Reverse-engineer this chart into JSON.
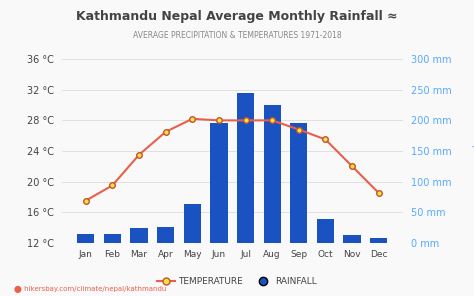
{
  "title": "Kathmandu Nepal Average Monthly Rainfall ≈",
  "subtitle": "AVERAGE PRECIPITATION & TEMPERATURES 1971-2018",
  "months": [
    "Jan",
    "Feb",
    "Mar",
    "Apr",
    "May",
    "Jun",
    "Jul",
    "Aug",
    "Sep",
    "Oct",
    "Nov",
    "Dec"
  ],
  "rainfall_mm": [
    15,
    15,
    24,
    25,
    64,
    195,
    245,
    225,
    195,
    38,
    13,
    8
  ],
  "temperature_c": [
    17.5,
    19.5,
    23.5,
    26.5,
    28.2,
    28.0,
    28.0,
    28.0,
    26.8,
    25.5,
    22.0,
    18.5
  ],
  "bar_color": "#1a52c2",
  "line_color": "#e8604c",
  "marker_face": "#f5e642",
  "marker_edge": "#c8502a",
  "bg_color": "#f9f9f9",
  "temp_ylim": [
    12,
    36
  ],
  "temp_yticks": [
    12,
    16,
    20,
    24,
    28,
    32,
    36
  ],
  "precip_ylim": [
    0,
    300
  ],
  "precip_yticks": [
    0,
    50,
    100,
    150,
    200,
    250,
    300
  ],
  "left_tick_labels": [
    "12 °C",
    "16 °C",
    "20 °C",
    "24 °C",
    "28 °C",
    "32 °C",
    "36 °C"
  ],
  "right_tick_labels": [
    "0 mm",
    "50 mm",
    "100 mm",
    "150 mm",
    "200 mm",
    "250 mm",
    "300 mm"
  ],
  "footer": "hikersbay.com/climate/nepal/kathmandu",
  "title_color": "#444444",
  "subtitle_color": "#888888",
  "grid_color": "#e0e0e0",
  "right_axis_color": "#55aaff",
  "temp_ylabel": "TEMPERATURE",
  "precip_ylabel": "Precipitation"
}
